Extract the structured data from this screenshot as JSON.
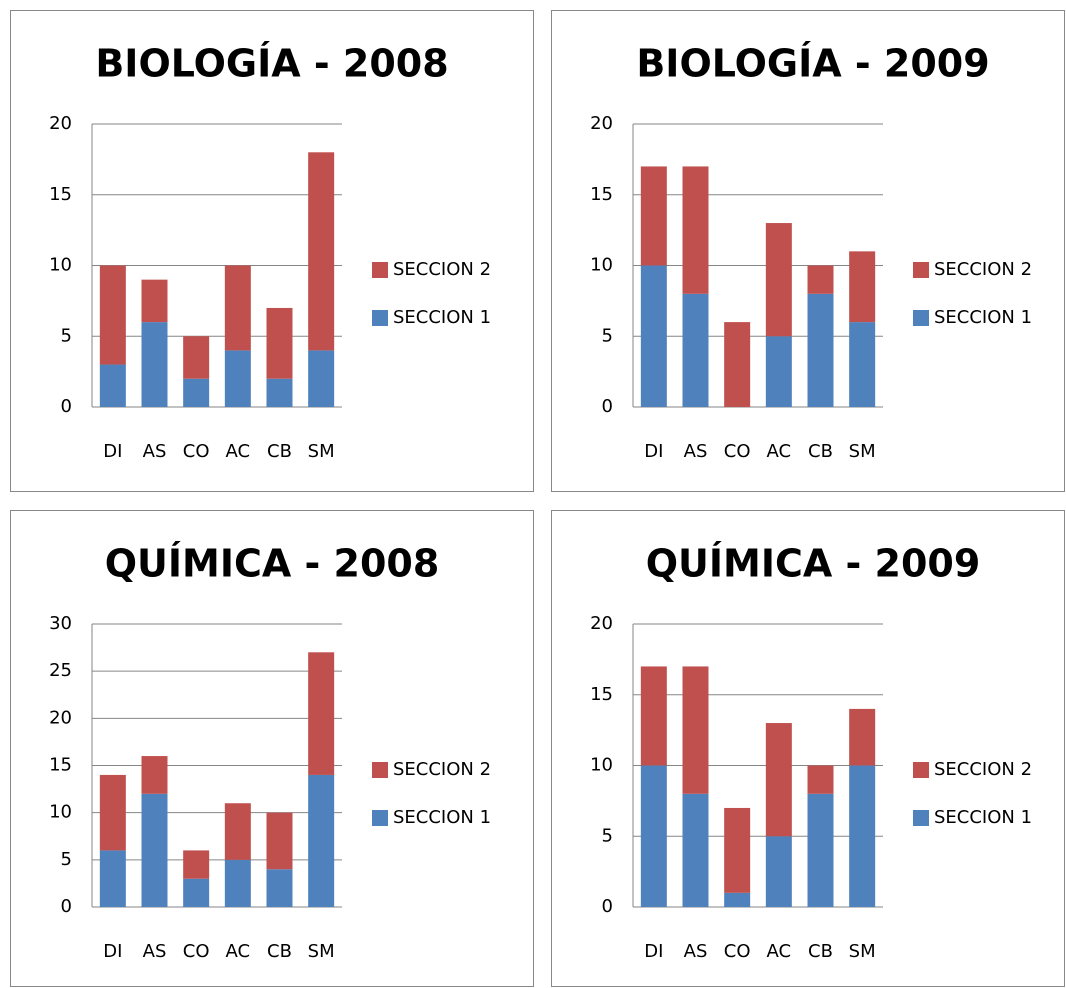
{
  "chart_data": [
    {
      "type": "bar",
      "stacked": true,
      "title": "BIOLOGÍA - 2008",
      "categories": [
        "DI",
        "AS",
        "CO",
        "AC",
        "CB",
        "SM"
      ],
      "series": [
        {
          "name": "SECCION 1",
          "color": "#4f81bd",
          "values": [
            3,
            6,
            2,
            4,
            2,
            4
          ]
        },
        {
          "name": "SECCION 2",
          "color": "#c0504d",
          "values": [
            7,
            3,
            3,
            6,
            5,
            14
          ]
        }
      ],
      "ylim": [
        0,
        20
      ],
      "yticks": [
        0,
        5,
        10,
        15,
        20
      ],
      "grid": true,
      "legend": "right"
    },
    {
      "type": "bar",
      "stacked": true,
      "title": "BIOLOGÍA - 2009",
      "categories": [
        "DI",
        "AS",
        "CO",
        "AC",
        "CB",
        "SM"
      ],
      "series": [
        {
          "name": "SECCION 1",
          "color": "#4f81bd",
          "values": [
            10,
            8,
            0,
            5,
            8,
            6
          ]
        },
        {
          "name": "SECCION 2",
          "color": "#c0504d",
          "values": [
            7,
            9,
            6,
            8,
            2,
            5
          ]
        }
      ],
      "ylim": [
        0,
        20
      ],
      "yticks": [
        0,
        5,
        10,
        15,
        20
      ],
      "grid": true,
      "legend": "right"
    },
    {
      "type": "bar",
      "stacked": true,
      "title": "QUÍMICA - 2008",
      "categories": [
        "DI",
        "AS",
        "CO",
        "AC",
        "CB",
        "SM"
      ],
      "series": [
        {
          "name": "SECCION 1",
          "color": "#4f81bd",
          "values": [
            6,
            12,
            3,
            5,
            4,
            14
          ]
        },
        {
          "name": "SECCION 2",
          "color": "#c0504d",
          "values": [
            8,
            4,
            3,
            6,
            6,
            13
          ]
        }
      ],
      "ylim": [
        0,
        30
      ],
      "yticks": [
        0,
        5,
        10,
        15,
        20,
        25,
        30
      ],
      "grid": true,
      "legend": "right"
    },
    {
      "type": "bar",
      "stacked": true,
      "title": "QUÍMICA - 2009",
      "categories": [
        "DI",
        "AS",
        "CO",
        "AC",
        "CB",
        "SM"
      ],
      "series": [
        {
          "name": "SECCION 1",
          "color": "#4f81bd",
          "values": [
            10,
            8,
            1,
            5,
            8,
            10
          ]
        },
        {
          "name": "SECCION 2",
          "color": "#c0504d",
          "values": [
            7,
            9,
            6,
            8,
            2,
            4
          ]
        }
      ],
      "ylim": [
        0,
        20
      ],
      "yticks": [
        0,
        5,
        10,
        15,
        20
      ],
      "grid": true,
      "legend": "right"
    }
  ]
}
